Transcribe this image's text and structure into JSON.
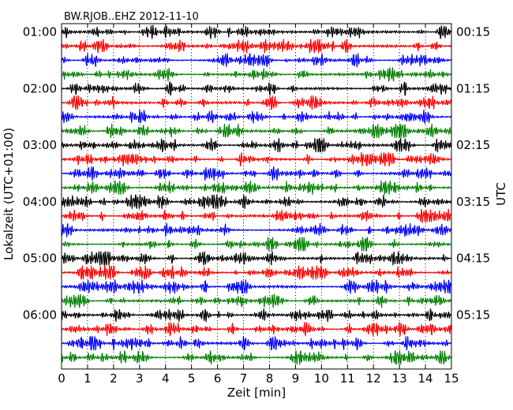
{
  "chart_data": {
    "type": "line",
    "title": "BW.RJOB..EHZ 2012-11-10",
    "xlabel": "Zeit  [min]",
    "ylabel_left": "Lokalzeit (UTC+01:00)",
    "ylabel_right": "UTC",
    "xlim": [
      0,
      15
    ],
    "x_ticks": [
      "0",
      "1",
      "2",
      "3",
      "4",
      "5",
      "6",
      "7",
      "8",
      "9",
      "10",
      "11",
      "12",
      "13",
      "14",
      "15"
    ],
    "left_ticks": [
      {
        "label": "01:00",
        "row": 0
      },
      {
        "label": "02:00",
        "row": 4
      },
      {
        "label": "03:00",
        "row": 8
      },
      {
        "label": "04:00",
        "row": 12
      },
      {
        "label": "05:00",
        "row": 16
      },
      {
        "label": "06:00",
        "row": 20
      }
    ],
    "right_ticks": [
      {
        "label": "00:15",
        "row": 0
      },
      {
        "label": "01:15",
        "row": 4
      },
      {
        "label": "02:15",
        "row": 8
      },
      {
        "label": "03:15",
        "row": 12
      },
      {
        "label": "04:15",
        "row": 16
      },
      {
        "label": "05:15",
        "row": 20
      }
    ],
    "trace_count": 24,
    "trace_minutes_each": 15,
    "trace_colors": [
      "#000000",
      "#ff0000",
      "#0000ff",
      "#007f00"
    ],
    "grid": "vertical-dotted"
  }
}
